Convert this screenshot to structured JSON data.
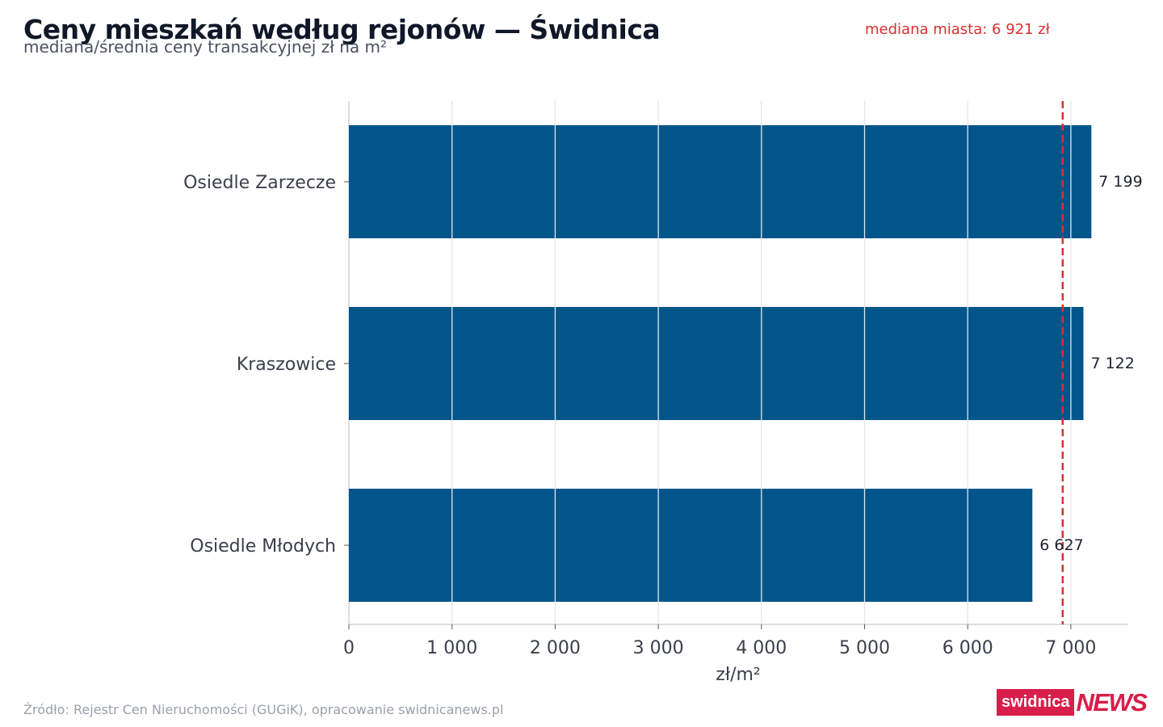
{
  "header": {
    "title": "Ceny mieszkań według rejonów — Świdnica",
    "subtitle": "mediana/średnia ceny transakcyjnej zł na m²"
  },
  "annotation": {
    "median_label": "mediana miasta: 6 921 zł"
  },
  "footer": {
    "source": "Źródło: Rejestr Cen Nieruchomości (GUGiK), opracowanie swidnicanews.pl",
    "logo_part1": "swidnica",
    "logo_part2": "NEWS"
  },
  "colors": {
    "bar": "#01558b",
    "median_line": "#d93030",
    "grid": "#e3e5e8",
    "axis": "#d0d4da",
    "tick_text": "#3a3f4b",
    "value_text": "#1f2430"
  },
  "chart_data": {
    "type": "bar",
    "orientation": "horizontal",
    "categories": [
      "Osiedle Zarzecze",
      "Kraszowice",
      "Osiedle Młodych"
    ],
    "values": [
      7199,
      7122,
      6627
    ],
    "value_labels": [
      "7 199",
      "7 122",
      "6 627"
    ],
    "xlabel": "zł/m²",
    "ylabel": "",
    "xlim": [
      0,
      7550
    ],
    "xticks": [
      0,
      1000,
      2000,
      3000,
      4000,
      5000,
      6000,
      7000
    ],
    "xtick_labels": [
      "0",
      "1 000",
      "2 000",
      "3 000",
      "4 000",
      "5 000",
      "6 000",
      "7 000"
    ],
    "reference_line": {
      "value": 6921,
      "style": "dashed"
    },
    "grid": "vertical"
  }
}
